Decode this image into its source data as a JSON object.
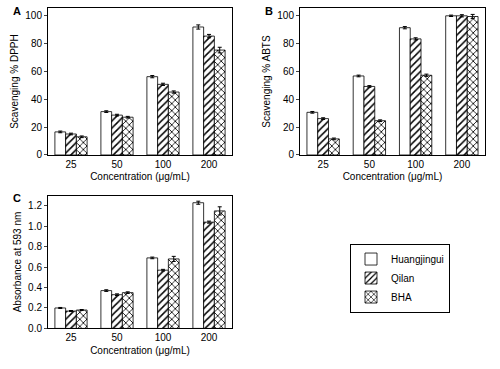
{
  "chart_data": [
    {
      "type": "bar",
      "title": "A",
      "x_label": "Concentration (μg/mL)",
      "y_label": "Scavenging % DPPH",
      "categories": [
        "25",
        "50",
        "100",
        "200"
      ],
      "series": [
        {
          "name": "Huangjingui",
          "color": "#ffffff",
          "marker": "open",
          "values": [
            16.5,
            31,
            56,
            91.5
          ],
          "errors": [
            0.6,
            0.6,
            0.8,
            1.5
          ]
        },
        {
          "name": "Qilan",
          "color": "#ffffff",
          "marker": "hatch",
          "values": [
            15,
            28.5,
            50.5,
            85
          ],
          "errors": [
            0.6,
            0.6,
            0.8,
            1.2
          ]
        },
        {
          "name": "BHA",
          "color": "#ffffff",
          "marker": "crosshatch",
          "values": [
            13,
            27,
            45,
            75
          ],
          "errors": [
            0.6,
            0.6,
            0.8,
            2
          ]
        }
      ],
      "ylim": [
        0,
        105
      ],
      "yticks": [
        0,
        20,
        40,
        60,
        80,
        100
      ],
      "grid": false
    },
    {
      "type": "bar",
      "title": "B",
      "x_label": "Concentration (μg/mL)",
      "y_label": "Scavenging % ABTS",
      "categories": [
        "25",
        "50",
        "100",
        "200"
      ],
      "series": [
        {
          "name": "Huangjingui",
          "color": "#ffffff",
          "marker": "open",
          "values": [
            30.5,
            56.5,
            91,
            99.5
          ],
          "errors": [
            0.6,
            0.6,
            0.8,
            0.5
          ]
        },
        {
          "name": "Qilan",
          "color": "#ffffff",
          "marker": "hatch",
          "values": [
            26,
            49,
            83,
            99.5
          ],
          "errors": [
            0.6,
            0.6,
            0.8,
            0.8
          ]
        },
        {
          "name": "BHA",
          "color": "#ffffff",
          "marker": "crosshatch",
          "values": [
            11.5,
            24.5,
            57,
            99
          ],
          "errors": [
            0.6,
            0.6,
            0.8,
            1.5
          ]
        }
      ],
      "ylim": [
        0,
        105
      ],
      "yticks": [
        0,
        20,
        40,
        60,
        80,
        100
      ],
      "grid": false
    },
    {
      "type": "bar",
      "title": "C",
      "x_label": "Concentration (μg/mL)",
      "y_label": "Absorbance at 593 nm",
      "categories": [
        "25",
        "50",
        "100",
        "200"
      ],
      "series": [
        {
          "name": "Huangjingui",
          "color": "#ffffff",
          "marker": "open",
          "values": [
            0.2,
            0.37,
            0.69,
            1.23
          ],
          "errors": [
            0.005,
            0.008,
            0.008,
            0.015
          ]
        },
        {
          "name": "Qilan",
          "color": "#ffffff",
          "marker": "hatch",
          "values": [
            0.17,
            0.33,
            0.57,
            1.04
          ],
          "errors": [
            0.005,
            0.008,
            0.008,
            0.01
          ]
        },
        {
          "name": "BHA",
          "color": "#ffffff",
          "marker": "crosshatch",
          "values": [
            0.18,
            0.35,
            0.68,
            1.15
          ],
          "errors": [
            0.005,
            0.008,
            0.025,
            0.04
          ]
        }
      ],
      "ylim": [
        0,
        1.3
      ],
      "yticks": [
        {
          "value": 0,
          "label": "0.0"
        },
        0.2,
        0.4,
        0.6,
        0.8,
        {
          "value": 1,
          "label": "1.0"
        },
        1.2
      ],
      "grid": false,
      "legend": "right"
    }
  ]
}
